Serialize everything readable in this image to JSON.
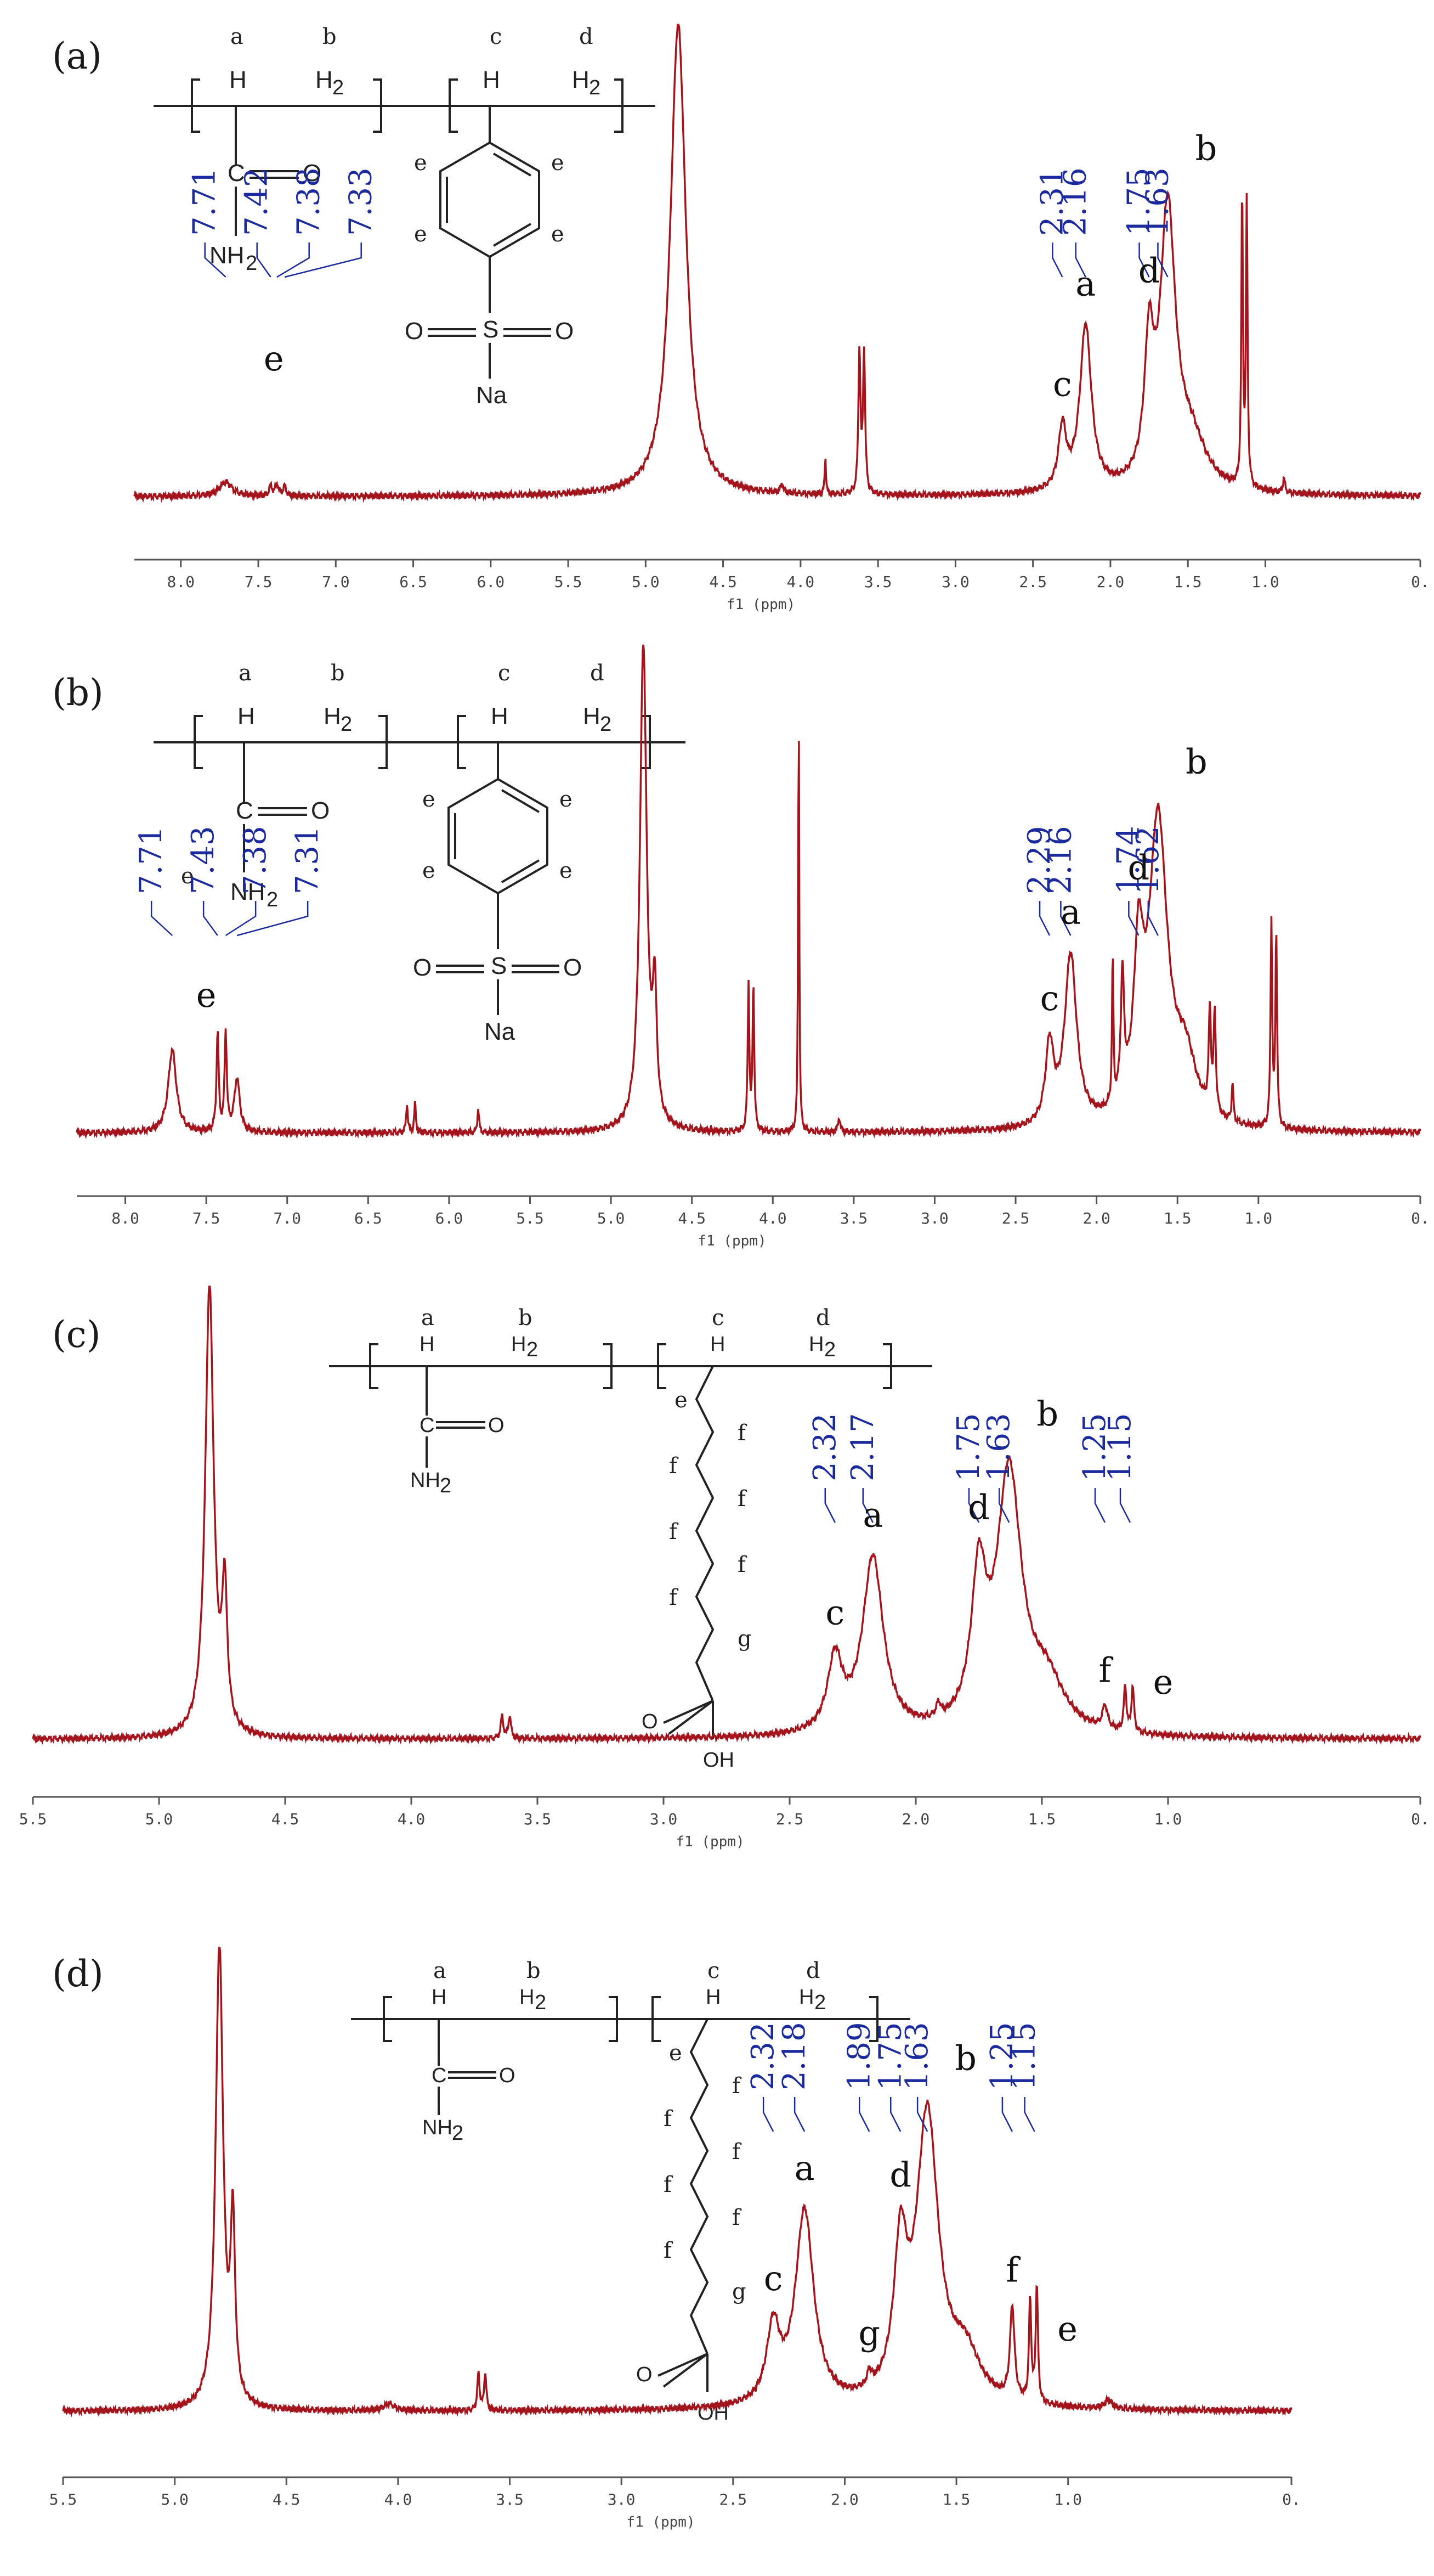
{
  "chart_data": [
    {
      "type": "line",
      "panel_label": "(a)",
      "xlabel": "f1 (ppm)",
      "xlim": [
        8.3,
        0.0
      ],
      "x_ticks": [
        "8.0",
        "7.5",
        "7.0",
        "6.5",
        "6.0",
        "5.5",
        "5.0",
        "4.5",
        "4.0",
        "3.5",
        "3.0",
        "2.5",
        "2.0",
        "1.5",
        "1.0",
        "0."
      ],
      "peak_labels": [
        "7.71",
        "7.42",
        "7.38",
        "7.33",
        "2.31",
        "2.16",
        "1.75",
        "1.63"
      ],
      "assignments": [
        {
          "letter": "e",
          "ppm": 7.4
        },
        {
          "letter": "c",
          "ppm": 2.31
        },
        {
          "letter": "a",
          "ppm": 2.16
        },
        {
          "letter": "d",
          "ppm": 1.75
        },
        {
          "letter": "b",
          "ppm": 1.63
        }
      ],
      "peaks": [
        {
          "ppm": 7.71,
          "h": 0.03,
          "w": 0.05
        },
        {
          "ppm": 7.42,
          "h": 0.02,
          "w": 0.012
        },
        {
          "ppm": 7.38,
          "h": 0.025,
          "w": 0.012
        },
        {
          "ppm": 7.33,
          "h": 0.02,
          "w": 0.012
        },
        {
          "ppm": 4.79,
          "h": 1.0,
          "w": 0.06
        },
        {
          "ppm": 4.12,
          "h": 0.02,
          "w": 0.01
        },
        {
          "ppm": 3.84,
          "h": 0.08,
          "w": 0.005
        },
        {
          "ppm": 3.62,
          "h": 0.3,
          "w": 0.008
        },
        {
          "ppm": 3.59,
          "h": 0.3,
          "w": 0.008
        },
        {
          "ppm": 2.31,
          "h": 0.13,
          "w": 0.03
        },
        {
          "ppm": 2.16,
          "h": 0.35,
          "w": 0.045
        },
        {
          "ppm": 1.75,
          "h": 0.27,
          "w": 0.035
        },
        {
          "ppm": 1.63,
          "h": 0.58,
          "w": 0.06
        },
        {
          "ppm": 1.48,
          "h": 0.1,
          "w": 0.12
        },
        {
          "ppm": 1.15,
          "h": 0.62,
          "w": 0.006
        },
        {
          "ppm": 1.12,
          "h": 0.6,
          "w": 0.006
        },
        {
          "ppm": 0.88,
          "h": 0.03,
          "w": 0.008
        }
      ]
    },
    {
      "type": "line",
      "panel_label": "(b)",
      "xlabel": "f1 (ppm)",
      "xlim": [
        8.3,
        0.0
      ],
      "x_ticks": [
        "8.0",
        "7.5",
        "7.0",
        "6.5",
        "6.0",
        "5.5",
        "5.0",
        "4.5",
        "4.0",
        "3.5",
        "3.0",
        "2.5",
        "2.0",
        "1.5",
        "1.0",
        "0."
      ],
      "peak_labels": [
        "7.71",
        "7.43",
        "7.38",
        "7.31",
        "2.29",
        "2.16",
        "1.74",
        "1.62"
      ],
      "assignments": [
        {
          "letter": "e",
          "ppm": 7.5
        },
        {
          "letter": "c",
          "ppm": 2.29
        },
        {
          "letter": "a",
          "ppm": 2.16
        },
        {
          "letter": "d",
          "ppm": 1.74
        },
        {
          "letter": "b",
          "ppm": 1.62
        }
      ],
      "peaks": [
        {
          "ppm": 7.71,
          "h": 0.17,
          "w": 0.03
        },
        {
          "ppm": 7.43,
          "h": 0.2,
          "w": 0.008
        },
        {
          "ppm": 7.38,
          "h": 0.2,
          "w": 0.008
        },
        {
          "ppm": 7.31,
          "h": 0.11,
          "w": 0.02
        },
        {
          "ppm": 6.26,
          "h": 0.06,
          "w": 0.006
        },
        {
          "ppm": 6.21,
          "h": 0.06,
          "w": 0.006
        },
        {
          "ppm": 5.82,
          "h": 0.05,
          "w": 0.006
        },
        {
          "ppm": 4.8,
          "h": 1.0,
          "w": 0.025
        },
        {
          "ppm": 4.73,
          "h": 0.25,
          "w": 0.015
        },
        {
          "ppm": 4.15,
          "h": 0.3,
          "w": 0.006
        },
        {
          "ppm": 4.12,
          "h": 0.3,
          "w": 0.006
        },
        {
          "ppm": 3.84,
          "h": 0.88,
          "w": 0.004
        },
        {
          "ppm": 3.59,
          "h": 0.03,
          "w": 0.008
        },
        {
          "ppm": 2.29,
          "h": 0.16,
          "w": 0.03
        },
        {
          "ppm": 2.16,
          "h": 0.35,
          "w": 0.045
        },
        {
          "ppm": 1.9,
          "h": 0.3,
          "w": 0.005
        },
        {
          "ppm": 1.84,
          "h": 0.25,
          "w": 0.012
        },
        {
          "ppm": 1.74,
          "h": 0.3,
          "w": 0.035
        },
        {
          "ppm": 1.62,
          "h": 0.62,
          "w": 0.07
        },
        {
          "ppm": 1.45,
          "h": 0.12,
          "w": 0.08
        },
        {
          "ppm": 1.3,
          "h": 0.2,
          "w": 0.008
        },
        {
          "ppm": 1.27,
          "h": 0.2,
          "w": 0.008
        },
        {
          "ppm": 1.16,
          "h": 0.08,
          "w": 0.006
        },
        {
          "ppm": 0.92,
          "h": 0.42,
          "w": 0.006
        },
        {
          "ppm": 0.89,
          "h": 0.4,
          "w": 0.006
        }
      ]
    },
    {
      "type": "line",
      "panel_label": "(c)",
      "xlabel": "f1 (ppm)",
      "xlim": [
        5.5,
        0.0
      ],
      "x_ticks": [
        "5.5",
        "5.0",
        "4.5",
        "4.0",
        "3.5",
        "3.0",
        "2.5",
        "2.0",
        "1.5",
        "1.0",
        "0."
      ],
      "peak_labels": [
        "2.32",
        "2.17",
        "1.75",
        "1.63",
        "1.25",
        "1.15"
      ],
      "assignments": [
        {
          "letter": "c",
          "ppm": 2.32
        },
        {
          "letter": "a",
          "ppm": 2.17
        },
        {
          "letter": "d",
          "ppm": 1.75
        },
        {
          "letter": "b",
          "ppm": 1.63
        },
        {
          "letter": "f",
          "ppm": 1.25
        },
        {
          "letter": "e",
          "ppm": 1.15
        }
      ],
      "peaks": [
        {
          "ppm": 4.8,
          "h": 1.0,
          "w": 0.02
        },
        {
          "ppm": 4.74,
          "h": 0.3,
          "w": 0.012
        },
        {
          "ppm": 3.64,
          "h": 0.05,
          "w": 0.006
        },
        {
          "ppm": 3.61,
          "h": 0.05,
          "w": 0.006
        },
        {
          "ppm": 2.32,
          "h": 0.16,
          "w": 0.035
        },
        {
          "ppm": 2.17,
          "h": 0.39,
          "w": 0.05
        },
        {
          "ppm": 1.91,
          "h": 0.03,
          "w": 0.01
        },
        {
          "ppm": 1.75,
          "h": 0.31,
          "w": 0.035
        },
        {
          "ppm": 1.63,
          "h": 0.57,
          "w": 0.06
        },
        {
          "ppm": 1.48,
          "h": 0.1,
          "w": 0.08
        },
        {
          "ppm": 1.25,
          "h": 0.05,
          "w": 0.012
        },
        {
          "ppm": 1.17,
          "h": 0.1,
          "w": 0.006
        },
        {
          "ppm": 1.14,
          "h": 0.1,
          "w": 0.006
        }
      ]
    },
    {
      "type": "line",
      "panel_label": "(d)",
      "xlabel": "f1 (ppm)",
      "xlim": [
        5.5,
        0.0
      ],
      "x_ticks": [
        "5.5",
        "5.0",
        "4.5",
        "4.0",
        "3.5",
        "3.0",
        "2.5",
        "2.0",
        "1.5",
        "1.0",
        "0."
      ],
      "peak_labels": [
        "2.32",
        "2.18",
        "1.89",
        "1.75",
        "1.63",
        "1.25",
        "1.15"
      ],
      "assignments": [
        {
          "letter": "c",
          "ppm": 2.32
        },
        {
          "letter": "a",
          "ppm": 2.18
        },
        {
          "letter": "g",
          "ppm": 1.89
        },
        {
          "letter": "d",
          "ppm": 1.75
        },
        {
          "letter": "b",
          "ppm": 1.63
        },
        {
          "letter": "f",
          "ppm": 1.25
        },
        {
          "letter": "e",
          "ppm": 1.15
        }
      ],
      "peaks": [
        {
          "ppm": 4.8,
          "h": 1.0,
          "w": 0.02
        },
        {
          "ppm": 4.74,
          "h": 0.38,
          "w": 0.012
        },
        {
          "ppm": 4.04,
          "h": 0.015,
          "w": 0.03
        },
        {
          "ppm": 3.64,
          "h": 0.08,
          "w": 0.006
        },
        {
          "ppm": 3.61,
          "h": 0.08,
          "w": 0.006
        },
        {
          "ppm": 2.32,
          "h": 0.16,
          "w": 0.035
        },
        {
          "ppm": 2.18,
          "h": 0.42,
          "w": 0.05
        },
        {
          "ppm": 1.89,
          "h": 0.03,
          "w": 0.012
        },
        {
          "ppm": 1.75,
          "h": 0.3,
          "w": 0.035
        },
        {
          "ppm": 1.63,
          "h": 0.62,
          "w": 0.06
        },
        {
          "ppm": 1.46,
          "h": 0.1,
          "w": 0.08
        },
        {
          "ppm": 1.25,
          "h": 0.2,
          "w": 0.012
        },
        {
          "ppm": 1.17,
          "h": 0.22,
          "w": 0.006
        },
        {
          "ppm": 1.14,
          "h": 0.25,
          "w": 0.006
        },
        {
          "ppm": 0.82,
          "h": 0.02,
          "w": 0.02
        }
      ]
    }
  ],
  "structures": {
    "ab": {
      "a": "a",
      "b": "b",
      "c": "c",
      "d": "d",
      "h": "H",
      "h2": "H",
      "h2sub": "2",
      "o": "O",
      "nh2": "NH",
      "nh2sub": "2",
      "s": "S",
      "na": "Na",
      "e": "e"
    },
    "cd": {
      "a": "a",
      "b": "b",
      "c": "c",
      "d": "d",
      "h": "H",
      "h2": "H",
      "h2sub": "2",
      "o": "O",
      "nh2": "NH",
      "nh2sub": "2",
      "oh": "OH",
      "e": "e",
      "f": "f",
      "g": "g"
    }
  },
  "colors": {
    "spectrum": "#a3141c",
    "ppm_label": "#1b2a9c",
    "axis": "#555555"
  }
}
